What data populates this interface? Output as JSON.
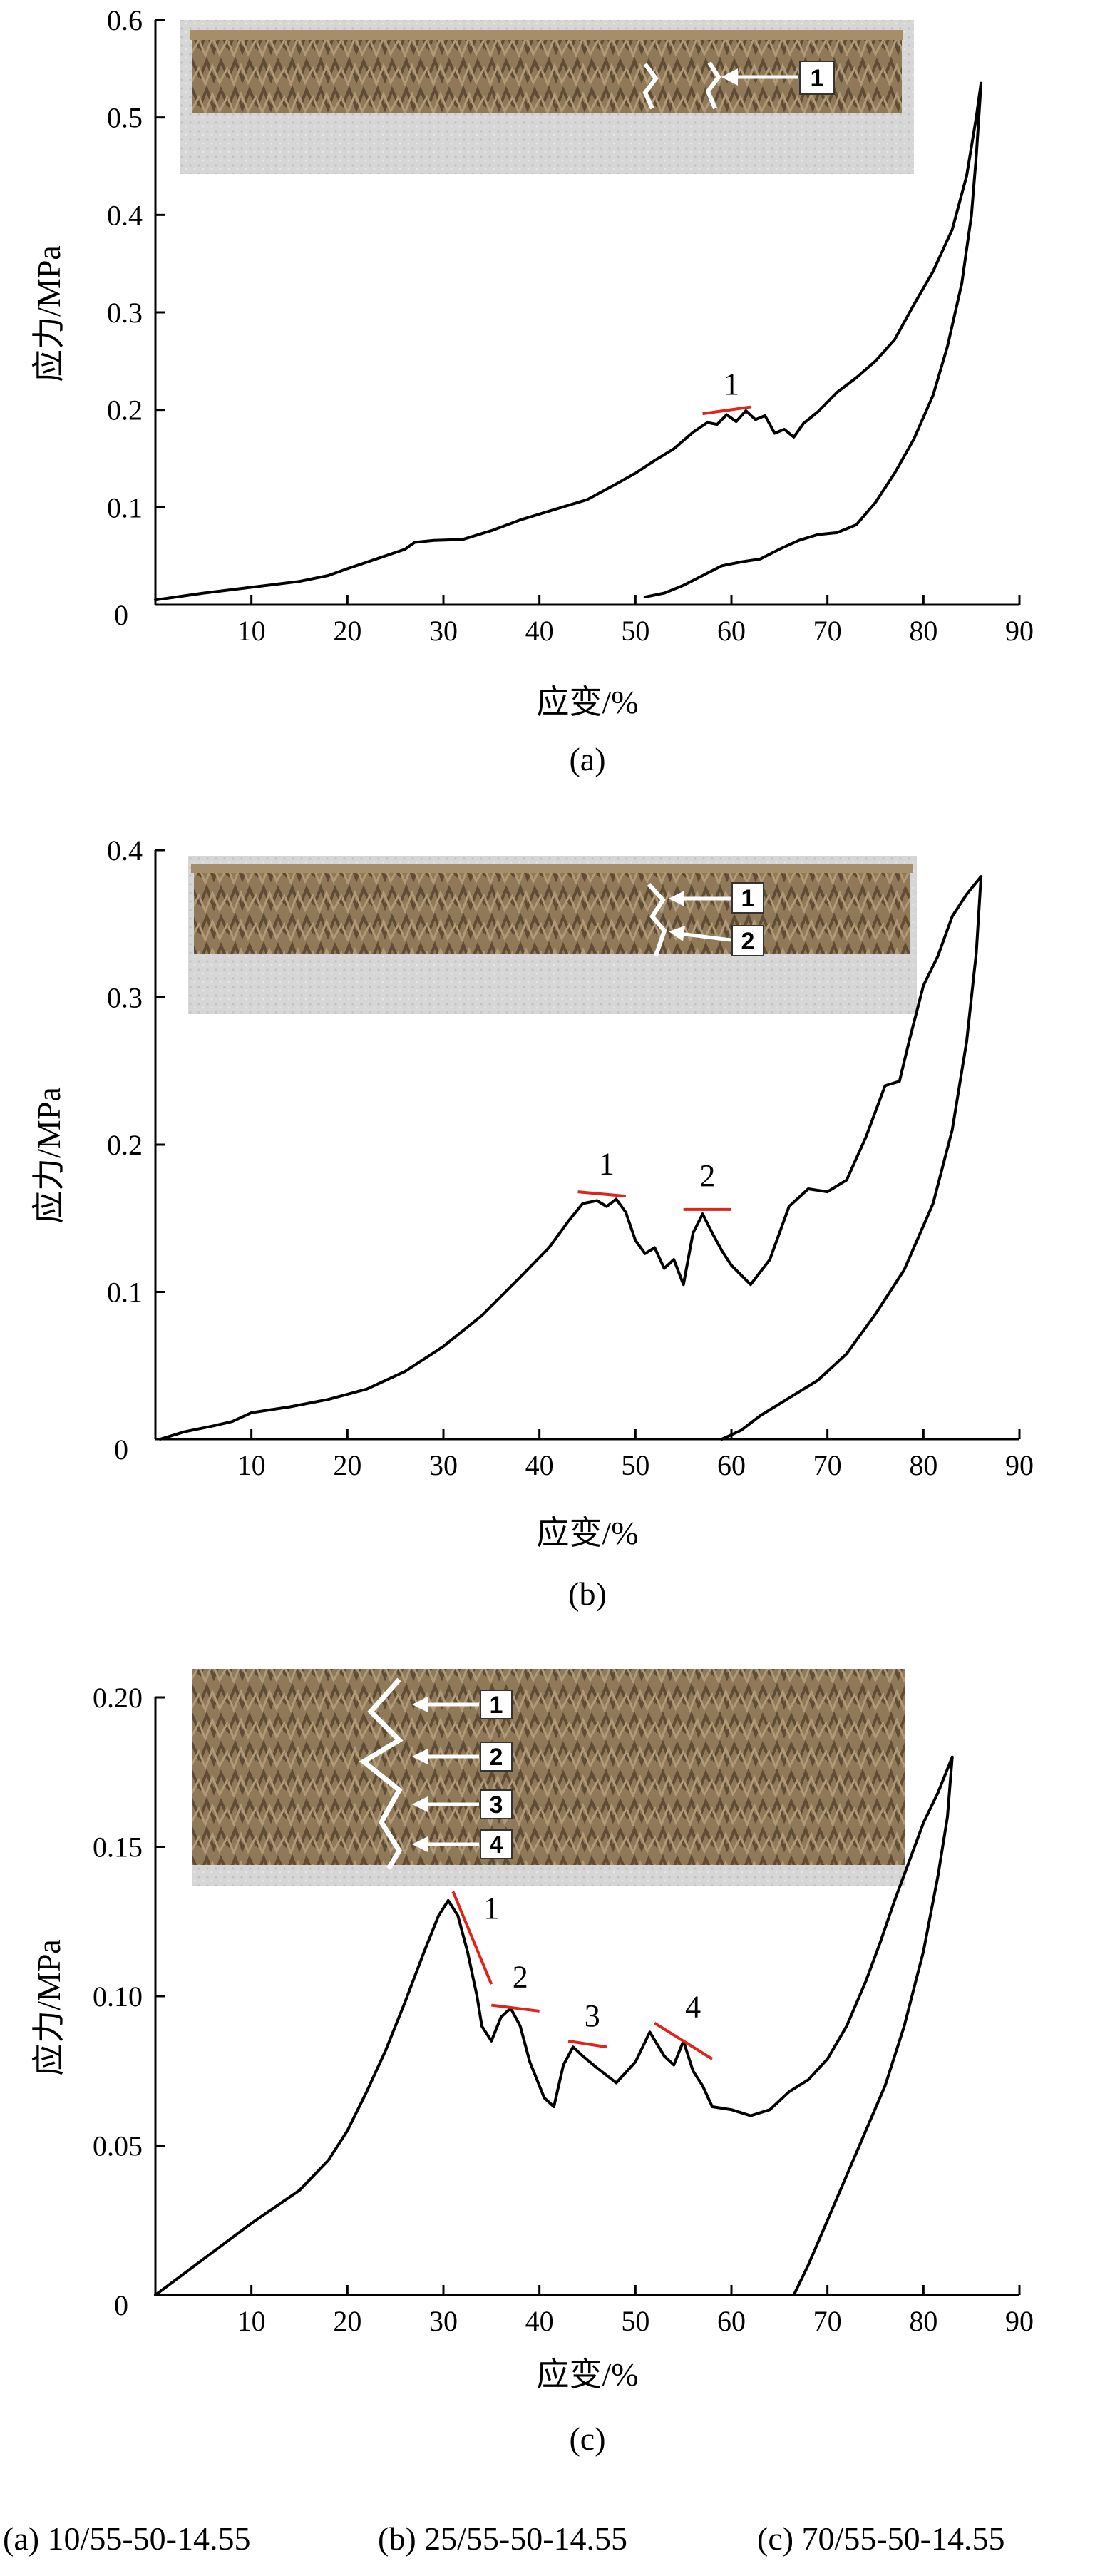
{
  "colors": {
    "curve": "#000000",
    "annotation": "#e0231b",
    "photo_cardboard": "#8a7457",
    "photo_foam": "#d4d4d4"
  },
  "chart_data": [
    {
      "type": "line",
      "caption": "(a)",
      "xlabel": "应变/%",
      "ylabel": "应力/MPa",
      "xlim": [
        0,
        90
      ],
      "ylim": [
        0,
        0.6
      ],
      "xticks": [
        10,
        20,
        30,
        40,
        50,
        60,
        70,
        80,
        90
      ],
      "yticks": [
        0.1,
        0.2,
        0.3,
        0.4,
        0.5,
        0.6
      ],
      "origin_label": "0",
      "y_decimals": 1,
      "inset_labels": [
        "1"
      ],
      "annotations": [
        {
          "label": "1",
          "line": [
            [
              57,
              0.196
            ],
            [
              62,
              0.203
            ]
          ],
          "label_at": [
            60,
            0.216
          ]
        }
      ],
      "series": [
        {
          "values": [
            [
              0,
              0.005
            ],
            [
              5,
              0.012
            ],
            [
              10,
              0.018
            ],
            [
              15,
              0.024
            ],
            [
              18,
              0.03
            ],
            [
              20,
              0.037
            ],
            [
              23,
              0.047
            ],
            [
              26,
              0.057
            ],
            [
              27,
              0.064
            ],
            [
              29,
              0.066
            ],
            [
              32,
              0.067
            ],
            [
              35,
              0.076
            ],
            [
              38,
              0.087
            ],
            [
              41,
              0.096
            ],
            [
              45,
              0.108
            ],
            [
              48,
              0.124
            ],
            [
              50,
              0.135
            ],
            [
              52,
              0.148
            ],
            [
              54,
              0.16
            ],
            [
              56,
              0.177
            ],
            [
              57.5,
              0.187
            ],
            [
              58.5,
              0.185
            ],
            [
              59.5,
              0.195
            ],
            [
              60.5,
              0.188
            ],
            [
              61.5,
              0.199
            ],
            [
              62.5,
              0.19
            ],
            [
              63.5,
              0.194
            ],
            [
              64.5,
              0.176
            ],
            [
              65.5,
              0.18
            ],
            [
              66.5,
              0.172
            ],
            [
              67.5,
              0.186
            ],
            [
              69,
              0.198
            ],
            [
              71,
              0.218
            ],
            [
              73,
              0.233
            ],
            [
              75,
              0.25
            ],
            [
              77,
              0.272
            ],
            [
              79,
              0.308
            ],
            [
              81,
              0.342
            ],
            [
              83,
              0.385
            ],
            [
              84.5,
              0.44
            ],
            [
              85.5,
              0.5
            ],
            [
              86,
              0.535
            ]
          ]
        },
        {
          "values": [
            [
              86,
              0.535
            ],
            [
              85.5,
              0.46
            ],
            [
              85,
              0.4
            ],
            [
              84,
              0.33
            ],
            [
              82.5,
              0.265
            ],
            [
              81,
              0.215
            ],
            [
              79,
              0.17
            ],
            [
              77,
              0.135
            ],
            [
              75,
              0.105
            ],
            [
              73,
              0.082
            ],
            [
              71,
              0.074
            ],
            [
              69,
              0.072
            ],
            [
              67,
              0.066
            ],
            [
              65,
              0.057
            ],
            [
              63,
              0.047
            ],
            [
              61,
              0.044
            ],
            [
              59,
              0.04
            ],
            [
              57,
              0.03
            ],
            [
              55,
              0.02
            ],
            [
              53,
              0.012
            ],
            [
              51,
              0.008
            ]
          ]
        }
      ]
    },
    {
      "type": "line",
      "caption": "(b)",
      "xlabel": "应变/%",
      "ylabel": "应力/MPa",
      "xlim": [
        0,
        90
      ],
      "ylim": [
        0,
        0.4
      ],
      "xticks": [
        10,
        20,
        30,
        40,
        50,
        60,
        70,
        80,
        90
      ],
      "yticks": [
        0.1,
        0.2,
        0.3,
        0.4
      ],
      "origin_label": "0",
      "y_decimals": 1,
      "inset_labels": [
        "1",
        "2"
      ],
      "annotations": [
        {
          "label": "1",
          "line": [
            [
              44,
              0.168
            ],
            [
              49,
              0.165
            ]
          ],
          "label_at": [
            47,
            0.18
          ]
        },
        {
          "label": "2",
          "line": [
            [
              55,
              0.156
            ],
            [
              60,
              0.156
            ]
          ],
          "label_at": [
            57.5,
            0.172
          ]
        }
      ],
      "series": [
        {
          "values": [
            [
              0.5,
              0.0
            ],
            [
              3,
              0.005
            ],
            [
              6,
              0.009
            ],
            [
              8,
              0.012
            ],
            [
              10,
              0.018
            ],
            [
              14,
              0.022
            ],
            [
              18,
              0.027
            ],
            [
              22,
              0.034
            ],
            [
              26,
              0.046
            ],
            [
              30,
              0.063
            ],
            [
              34,
              0.084
            ],
            [
              38,
              0.11
            ],
            [
              41,
              0.13
            ],
            [
              43,
              0.148
            ],
            [
              44.5,
              0.16
            ],
            [
              46,
              0.162
            ],
            [
              47,
              0.158
            ],
            [
              48,
              0.163
            ],
            [
              49,
              0.154
            ],
            [
              50,
              0.135
            ],
            [
              51,
              0.126
            ],
            [
              52,
              0.13
            ],
            [
              53,
              0.116
            ],
            [
              54,
              0.122
            ],
            [
              55,
              0.105
            ],
            [
              56,
              0.14
            ],
            [
              57,
              0.153
            ],
            [
              58,
              0.14
            ],
            [
              59,
              0.128
            ],
            [
              60,
              0.118
            ],
            [
              62,
              0.105
            ],
            [
              64,
              0.122
            ],
            [
              66,
              0.158
            ],
            [
              68,
              0.17
            ],
            [
              70,
              0.168
            ],
            [
              72,
              0.176
            ],
            [
              74,
              0.205
            ],
            [
              76,
              0.24
            ],
            [
              77.5,
              0.243
            ],
            [
              78.5,
              0.27
            ],
            [
              80,
              0.308
            ],
            [
              81.5,
              0.328
            ],
            [
              83,
              0.355
            ],
            [
              84.5,
              0.37
            ],
            [
              86,
              0.382
            ]
          ]
        },
        {
          "values": [
            [
              86,
              0.382
            ],
            [
              85.5,
              0.33
            ],
            [
              84.5,
              0.27
            ],
            [
              83,
              0.21
            ],
            [
              81,
              0.16
            ],
            [
              78,
              0.115
            ],
            [
              75,
              0.085
            ],
            [
              72,
              0.058
            ],
            [
              69,
              0.04
            ],
            [
              66,
              0.028
            ],
            [
              63,
              0.016
            ],
            [
              61,
              0.006
            ],
            [
              59,
              0.0
            ]
          ]
        }
      ]
    },
    {
      "type": "line",
      "caption": "(c)",
      "xlabel": "应变/%",
      "ylabel": "应力/MPa",
      "xlim": [
        0,
        90
      ],
      "ylim": [
        0,
        0.2
      ],
      "xticks": [
        10,
        20,
        30,
        40,
        50,
        60,
        70,
        80,
        90
      ],
      "yticks": [
        0.05,
        0.1,
        0.15,
        0.2
      ],
      "origin_label": "0",
      "y_decimals": 2,
      "inset_labels": [
        "1",
        "2",
        "3",
        "4"
      ],
      "annotations": [
        {
          "label": "1",
          "line": [
            [
              31,
              0.135
            ],
            [
              35,
              0.104
            ]
          ],
          "label_at": [
            35,
            0.126
          ]
        },
        {
          "label": "2",
          "line": [
            [
              35,
              0.097
            ],
            [
              40,
              0.095
            ]
          ],
          "label_at": [
            38,
            0.103
          ]
        },
        {
          "label": "3",
          "line": [
            [
              43,
              0.085
            ],
            [
              47,
              0.083
            ]
          ],
          "label_at": [
            45.5,
            0.09
          ]
        },
        {
          "label": "4",
          "line": [
            [
              52,
              0.091
            ],
            [
              58,
              0.079
            ]
          ],
          "label_at": [
            56,
            0.093
          ]
        }
      ],
      "series": [
        {
          "values": [
            [
              0,
              0.0
            ],
            [
              5,
              0.012
            ],
            [
              10,
              0.024
            ],
            [
              15,
              0.035
            ],
            [
              18,
              0.045
            ],
            [
              20,
              0.055
            ],
            [
              22,
              0.068
            ],
            [
              24,
              0.082
            ],
            [
              26,
              0.098
            ],
            [
              28,
              0.115
            ],
            [
              29.5,
              0.127
            ],
            [
              30.5,
              0.132
            ],
            [
              31.5,
              0.127
            ],
            [
              32.5,
              0.115
            ],
            [
              33.5,
              0.1
            ],
            [
              34,
              0.09
            ],
            [
              35,
              0.085
            ],
            [
              36,
              0.093
            ],
            [
              37,
              0.096
            ],
            [
              38,
              0.09
            ],
            [
              39,
              0.078
            ],
            [
              40.5,
              0.066
            ],
            [
              41.5,
              0.063
            ],
            [
              42.5,
              0.077
            ],
            [
              43.5,
              0.083
            ],
            [
              44.5,
              0.08
            ],
            [
              46,
              0.076
            ],
            [
              48,
              0.071
            ],
            [
              50,
              0.078
            ],
            [
              51.5,
              0.088
            ],
            [
              53,
              0.08
            ],
            [
              54,
              0.077
            ],
            [
              55,
              0.085
            ],
            [
              56,
              0.075
            ],
            [
              57,
              0.07
            ],
            [
              58,
              0.063
            ],
            [
              60,
              0.062
            ],
            [
              62,
              0.06
            ],
            [
              64,
              0.062
            ],
            [
              66,
              0.068
            ],
            [
              68,
              0.072
            ],
            [
              70,
              0.079
            ],
            [
              72,
              0.09
            ],
            [
              74,
              0.105
            ],
            [
              75.5,
              0.118
            ],
            [
              77,
              0.132
            ],
            [
              78.5,
              0.145
            ],
            [
              80,
              0.158
            ],
            [
              81.5,
              0.168
            ],
            [
              83,
              0.18
            ]
          ]
        },
        {
          "values": [
            [
              83,
              0.18
            ],
            [
              82.5,
              0.16
            ],
            [
              81.5,
              0.14
            ],
            [
              80,
              0.115
            ],
            [
              78,
              0.09
            ],
            [
              76,
              0.07
            ],
            [
              74,
              0.055
            ],
            [
              72,
              0.04
            ],
            [
              70,
              0.025
            ],
            [
              68,
              0.01
            ],
            [
              66.5,
              0.0
            ]
          ]
        }
      ]
    }
  ],
  "footer": {
    "caption_a": "(a) 10/55-50-14.55",
    "caption_b": "(b) 25/55-50-14.55",
    "caption_c": "(c) 70/55-50-14.55"
  }
}
